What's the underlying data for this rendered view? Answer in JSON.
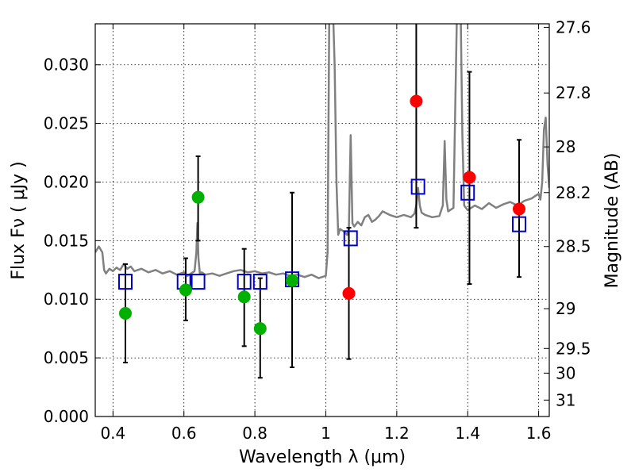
{
  "chart_data": {
    "type": "scatter",
    "xlabel": "Wavelength  λ (μm)",
    "ylabel": "Flux  Fν  ( μJy )",
    "ylabel_right": "Magnitude (AB)",
    "xlim": [
      0.35,
      1.63
    ],
    "ylim": [
      0.0,
      0.0335
    ],
    "grid": true,
    "x_ticks": [
      0.4,
      0.6,
      0.8,
      1.0,
      1.2,
      1.4,
      1.6
    ],
    "x_tick_labels": [
      "0.4",
      "0.6",
      "0.8",
      "1",
      "1.2",
      "1.4",
      "1.6"
    ],
    "y_ticks": [
      0.0,
      0.005,
      0.01,
      0.015,
      0.02,
      0.025,
      0.03
    ],
    "y_tick_labels": [
      "0.000",
      "0.005",
      "0.010",
      "0.015",
      "0.020",
      "0.025",
      "0.030"
    ],
    "right_ticks": [
      {
        "label": "27.6",
        "flux": 0.0332
      },
      {
        "label": "27.8",
        "flux": 0.0276
      },
      {
        "label": "28",
        "flux": 0.023
      },
      {
        "label": "28.2",
        "flux": 0.0191
      },
      {
        "label": "28.5",
        "flux": 0.0145
      },
      {
        "label": "29",
        "flux": 0.0092
      },
      {
        "label": "29.5",
        "flux": 0.0058
      },
      {
        "label": "30",
        "flux": 0.0037
      },
      {
        "label": "31",
        "flux": 0.0014
      }
    ],
    "series": [
      {
        "kind": "line",
        "color": "#808080",
        "x": [
          0.35,
          0.36,
          0.37,
          0.375,
          0.38,
          0.39,
          0.4,
          0.41,
          0.42,
          0.43,
          0.44,
          0.45,
          0.46,
          0.48,
          0.5,
          0.52,
          0.54,
          0.56,
          0.58,
          0.6,
          0.61,
          0.62,
          0.63,
          0.635,
          0.638,
          0.641,
          0.645,
          0.65,
          0.66,
          0.68,
          0.7,
          0.72,
          0.74,
          0.76,
          0.78,
          0.8,
          0.82,
          0.84,
          0.86,
          0.88,
          0.9,
          0.92,
          0.94,
          0.96,
          0.98,
          1.0,
          1.005,
          1.01,
          1.015,
          1.02,
          1.025,
          1.03,
          1.035,
          1.04,
          1.05,
          1.06,
          1.065,
          1.07,
          1.075,
          1.08,
          1.09,
          1.1,
          1.11,
          1.12,
          1.13,
          1.14,
          1.15,
          1.16,
          1.18,
          1.2,
          1.22,
          1.24,
          1.25,
          1.255,
          1.26,
          1.265,
          1.27,
          1.28,
          1.3,
          1.32,
          1.33,
          1.335,
          1.34,
          1.345,
          1.35,
          1.36,
          1.37,
          1.375,
          1.38,
          1.385,
          1.39,
          1.4,
          1.42,
          1.44,
          1.46,
          1.48,
          1.5,
          1.52,
          1.54,
          1.56,
          1.58,
          1.59,
          1.6,
          1.605,
          1.61,
          1.615,
          1.62,
          1.625,
          1.63
        ],
        "y": [
          0.014,
          0.0145,
          0.014,
          0.0125,
          0.0122,
          0.0126,
          0.0124,
          0.0127,
          0.0125,
          0.013,
          0.0126,
          0.0128,
          0.0124,
          0.0126,
          0.0123,
          0.0125,
          0.0122,
          0.0124,
          0.0121,
          0.0123,
          0.012,
          0.0122,
          0.0124,
          0.014,
          0.0165,
          0.0135,
          0.0122,
          0.0123,
          0.0121,
          0.0122,
          0.012,
          0.0122,
          0.0124,
          0.0125,
          0.0123,
          0.0124,
          0.0122,
          0.0123,
          0.0121,
          0.0122,
          0.012,
          0.0121,
          0.0119,
          0.0121,
          0.0118,
          0.012,
          0.014,
          0.035,
          0.035,
          0.035,
          0.03,
          0.02,
          0.0155,
          0.016,
          0.0158,
          0.0155,
          0.016,
          0.024,
          0.0165,
          0.0162,
          0.0166,
          0.0163,
          0.017,
          0.0172,
          0.0166,
          0.0168,
          0.0171,
          0.0175,
          0.0172,
          0.017,
          0.0172,
          0.017,
          0.0173,
          0.018,
          0.0195,
          0.018,
          0.0174,
          0.0172,
          0.017,
          0.0171,
          0.018,
          0.0235,
          0.0185,
          0.0175,
          0.0176,
          0.0178,
          0.035,
          0.035,
          0.035,
          0.024,
          0.018,
          0.0176,
          0.018,
          0.0177,
          0.0182,
          0.0178,
          0.0181,
          0.0183,
          0.018,
          0.0184,
          0.0186,
          0.0188,
          0.019,
          0.0185,
          0.02,
          0.0245,
          0.0255,
          0.0215,
          0.0195
        ]
      },
      {
        "kind": "points",
        "marker": "circle",
        "color": "#00b000",
        "x": [
          0.435,
          0.605,
          0.64,
          0.77,
          0.815,
          0.905
        ],
        "y": [
          0.0088,
          0.0108,
          0.0187,
          0.0102,
          0.0075,
          0.0116
        ]
      },
      {
        "kind": "points",
        "marker": "circle",
        "color": "#ff0000",
        "x": [
          1.065,
          1.255,
          1.405,
          1.545
        ],
        "y": [
          0.0105,
          0.0269,
          0.0204,
          0.0177
        ]
      },
      {
        "kind": "points",
        "marker": "square",
        "color": "#0000cc",
        "x": [
          0.435,
          0.6,
          0.64,
          0.77,
          0.815,
          0.905,
          1.07,
          1.26,
          1.4,
          1.545
        ],
        "y": [
          0.0115,
          0.0115,
          0.0115,
          0.0115,
          0.0115,
          0.0117,
          0.0152,
          0.0196,
          0.0191,
          0.0164
        ]
      }
    ],
    "errorbars": [
      {
        "x": 0.435,
        "low": 0.0046,
        "high": 0.013
      },
      {
        "x": 0.605,
        "low": 0.0082,
        "high": 0.0135
      },
      {
        "x": 0.64,
        "low": 0.015,
        "high": 0.0222
      },
      {
        "x": 0.77,
        "low": 0.006,
        "high": 0.0143
      },
      {
        "x": 0.815,
        "low": 0.0033,
        "high": 0.0118
      },
      {
        "x": 0.905,
        "low": 0.0042,
        "high": 0.0191
      },
      {
        "x": 1.065,
        "low": 0.0049,
        "high": 0.0161
      },
      {
        "x": 1.255,
        "low": 0.0161,
        "high": 0.0336
      },
      {
        "x": 1.405,
        "low": 0.0113,
        "high": 0.0294
      },
      {
        "x": 1.545,
        "low": 0.0119,
        "high": 0.0236
      }
    ]
  }
}
